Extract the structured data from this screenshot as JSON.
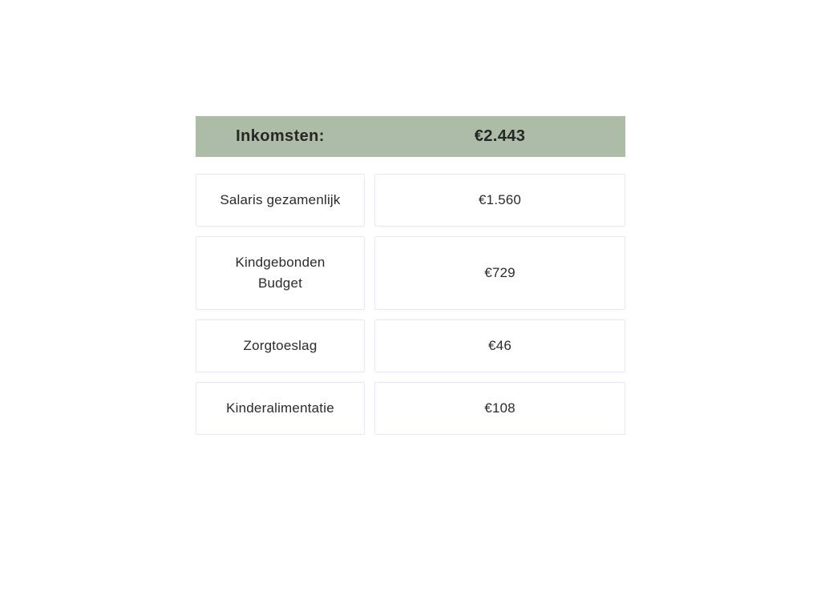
{
  "table": {
    "title": "Inkomsten",
    "header": {
      "label": "Inkomsten:",
      "total": "€2.443"
    },
    "rows": [
      {
        "label": "Salaris gezamenlijk",
        "value": "€1.560"
      },
      {
        "label": "Kindgebonden\nBudget",
        "value": "€729"
      },
      {
        "label": "Zorgtoeslag",
        "value": "€46"
      },
      {
        "label": "Kinderalimentatie",
        "value": "€108"
      }
    ],
    "colors": {
      "header_background": "#adbca6",
      "header_text": "#262626",
      "cell_border": "#e3e8f8",
      "cell_background": "#ffffff",
      "cell_text": "#2b2b2b",
      "page_background": "#ffffff"
    }
  }
}
